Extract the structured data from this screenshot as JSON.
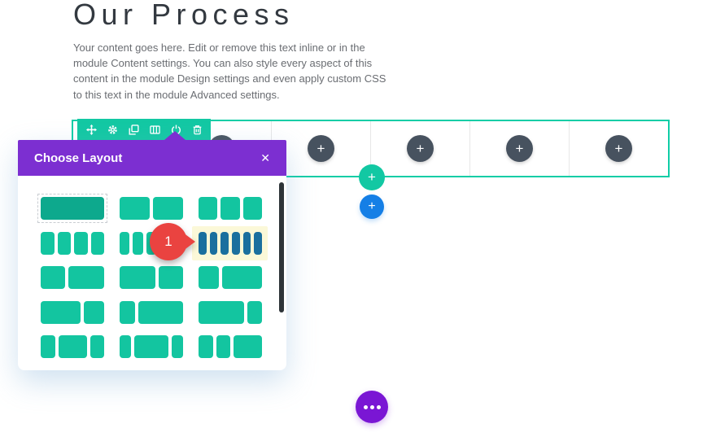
{
  "page": {
    "heading": "Our Process",
    "body_text": "Your content goes here. Edit or remove this text inline or in the module Content settings. You can also style every aspect of this content in the module Design settings and even apply custom CSS to this text in the module Advanced settings."
  },
  "row_toolbar": {
    "icons": [
      "move-icon",
      "gear-icon",
      "duplicate-icon",
      "columns-icon",
      "power-icon",
      "trash-icon"
    ]
  },
  "builder_row": {
    "column_count": 6,
    "add_module_glyph": "+",
    "add_row_glyph": "+",
    "add_section_glyph": "+"
  },
  "modal": {
    "title": "Choose Layout",
    "close_glyph": "✕",
    "layouts": [
      {
        "bars": [
          1
        ],
        "state": "hover"
      },
      {
        "bars": [
          1,
          1
        ]
      },
      {
        "bars": [
          1,
          1,
          1
        ]
      },
      {
        "bars": [
          1,
          1,
          1,
          1
        ]
      },
      {
        "bars": [
          1,
          1,
          1,
          1,
          1
        ]
      },
      {
        "bars": [
          1,
          1,
          1,
          1,
          1,
          1
        ],
        "state": "selected"
      },
      {
        "bars": [
          2,
          3
        ]
      },
      {
        "bars": [
          3,
          2
        ]
      },
      {
        "bars": [
          1,
          2
        ]
      },
      {
        "bars": [
          2,
          1
        ]
      },
      {
        "bars": [
          1,
          3
        ]
      },
      {
        "bars": [
          3,
          1
        ]
      },
      {
        "bars": [
          1,
          2,
          1
        ]
      },
      {
        "bars": [
          1,
          3,
          1
        ]
      },
      {
        "bars": [
          1,
          1,
          2
        ]
      }
    ]
  },
  "annotation": {
    "step_number": "1"
  },
  "colors": {
    "builder_teal": "#12c8a3",
    "row_border_teal": "#0fcda6",
    "modal_purple": "#7c2fd1",
    "dots_purple": "#7a16d4",
    "add_section_blue": "#157fe6",
    "module_circle_gray": "#47525f",
    "selected_bars_blue": "#1a6f9e",
    "selected_highlight": "#fbf8d8",
    "annotation_red": "#ea4340",
    "layout_bar_teal": "#13c5a0",
    "layout_bar_teal_dark": "#0da98d"
  }
}
